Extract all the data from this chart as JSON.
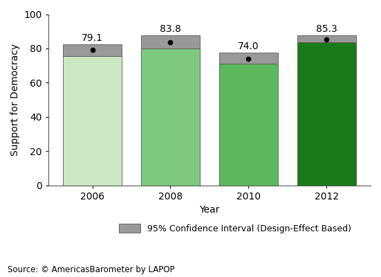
{
  "years": [
    2006,
    2008,
    2010,
    2012
  ],
  "means": [
    79.1,
    83.8,
    74.0,
    85.3
  ],
  "ci_lower": [
    75.5,
    80.0,
    71.0,
    83.5
  ],
  "ci_upper": [
    82.5,
    87.5,
    77.5,
    87.5
  ],
  "bar_colors": [
    "#cce8c2",
    "#7dc87d",
    "#5cb85c",
    "#1a7a1a"
  ],
  "ci_color": "#999999",
  "dot_color": "#000000",
  "bar_width": 0.75,
  "ylim": [
    0,
    100
  ],
  "ylabel": "Support for Democracy",
  "xlabel": "Year",
  "source": "Source: © AmericasBarometer by LAPOP",
  "legend_label": "95% Confidence Interval (Design-Effect Based)",
  "yticks": [
    0,
    20,
    40,
    60,
    80,
    100
  ]
}
